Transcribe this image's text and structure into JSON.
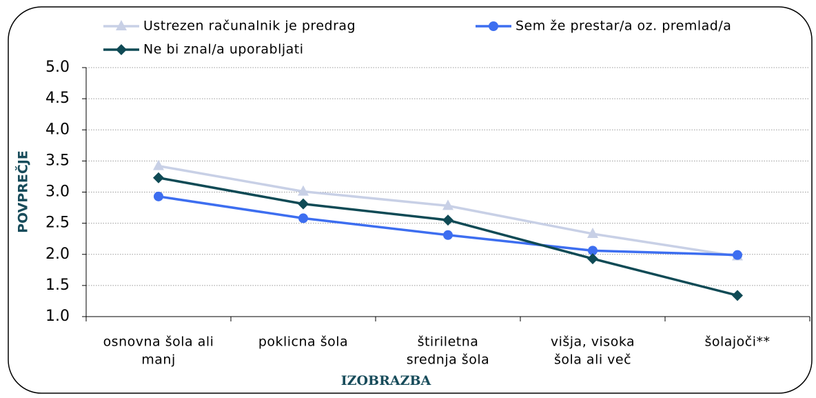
{
  "chart_data": {
    "type": "line",
    "xlabel": "IZOBRAZBA",
    "ylabel": "POVPREČJE",
    "categories": [
      [
        "osnovna šola ali",
        "manj"
      ],
      [
        "poklicna šola"
      ],
      [
        "štiriletna",
        "srednja šola"
      ],
      [
        "višja, visoka",
        "šola ali več"
      ],
      [
        "šolajoči**"
      ]
    ],
    "series": [
      {
        "name": "Ustrezen računalnik je predrag",
        "color": "#c8d0e6",
        "marker": "triangle",
        "values": [
          3.42,
          3.01,
          2.78,
          2.33,
          1.97
        ]
      },
      {
        "name": "Sem že prestar/a oz. premlad/a",
        "color": "#3d6ef0",
        "marker": "circle",
        "values": [
          2.93,
          2.58,
          2.31,
          2.06,
          1.99
        ]
      },
      {
        "name": "Ne bi znal/a uporabljati",
        "color": "#0f4a55",
        "marker": "diamond",
        "values": [
          3.23,
          2.81,
          2.55,
          1.93,
          1.34
        ]
      }
    ],
    "ylim": [
      1.0,
      5.0
    ],
    "yticks": [
      {
        "value": 1,
        "label": "1.0"
      },
      1.5,
      {
        "value": 2,
        "label": "2.0"
      },
      2.5,
      {
        "value": 3,
        "label": "3.0"
      },
      3.5,
      {
        "value": 4,
        "label": "4.0"
      },
      4.5,
      {
        "value": 5,
        "label": "5.0"
      }
    ],
    "grid": true,
    "legend": "top"
  }
}
